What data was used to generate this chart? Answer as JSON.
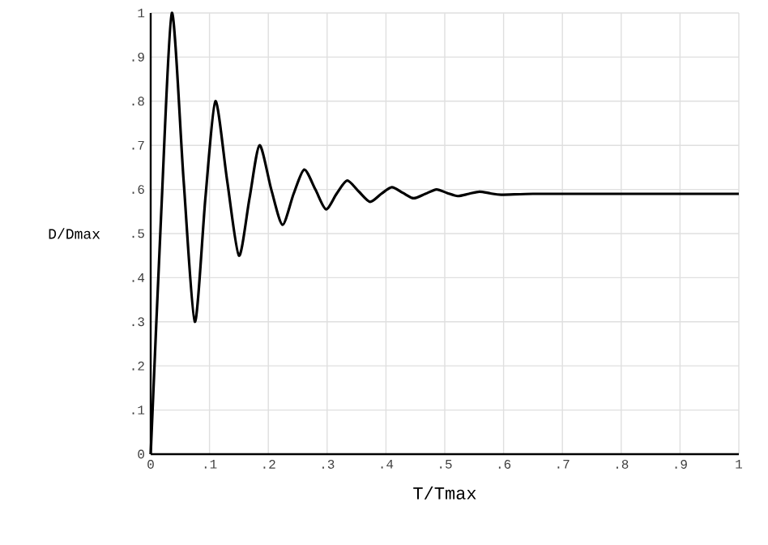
{
  "chart_data": {
    "type": "line",
    "xlabel": "T/Tmax",
    "ylabel": "D/Dmax",
    "x": [
      0,
      0.018,
      0.036,
      0.056,
      0.075,
      0.093,
      0.11,
      0.13,
      0.15,
      0.168,
      0.185,
      0.205,
      0.224,
      0.243,
      0.261,
      0.28,
      0.298,
      0.316,
      0.334,
      0.354,
      0.373,
      0.392,
      0.41,
      0.429,
      0.447,
      0.467,
      0.486,
      0.504,
      0.522,
      0.541,
      0.559,
      0.578,
      0.596,
      0.65,
      0.75,
      1.0
    ],
    "series": [
      {
        "color": "#000000",
        "values": [
          0,
          0.55,
          1.0,
          0.62,
          0.3,
          0.58,
          0.8,
          0.62,
          0.45,
          0.58,
          0.7,
          0.6,
          0.52,
          0.59,
          0.645,
          0.6,
          0.555,
          0.59,
          0.62,
          0.595,
          0.572,
          0.59,
          0.605,
          0.592,
          0.58,
          0.59,
          0.6,
          0.592,
          0.585,
          0.59,
          0.595,
          0.591,
          0.588,
          0.59,
          0.59,
          0.59
        ]
      }
    ],
    "xlim": [
      0,
      1
    ],
    "ylim": [
      0,
      1
    ],
    "xticks": [
      0,
      {
        "value": 0.1,
        "label": ".1"
      },
      {
        "value": 0.2,
        "label": ".2"
      },
      {
        "value": 0.3,
        "label": ".3"
      },
      {
        "value": 0.4,
        "label": ".4"
      },
      {
        "value": 0.5,
        "label": ".5"
      },
      {
        "value": 0.6,
        "label": ".6"
      },
      {
        "value": 0.7,
        "label": ".7"
      },
      {
        "value": 0.8,
        "label": ".8"
      },
      {
        "value": 0.9,
        "label": ".9"
      },
      1
    ],
    "yticks": [
      0,
      {
        "value": 0.1,
        "label": ".1"
      },
      {
        "value": 0.2,
        "label": ".2"
      },
      {
        "value": 0.3,
        "label": ".3"
      },
      {
        "value": 0.4,
        "label": ".4"
      },
      {
        "value": 0.5,
        "label": ".5"
      },
      {
        "value": 0.6,
        "label": ".6"
      },
      {
        "value": 0.7,
        "label": ".7"
      },
      {
        "value": 0.8,
        "label": ".8"
      },
      {
        "value": 0.9,
        "label": ".9"
      },
      1
    ],
    "grid": true,
    "marker": "none",
    "line_style": "solid"
  }
}
